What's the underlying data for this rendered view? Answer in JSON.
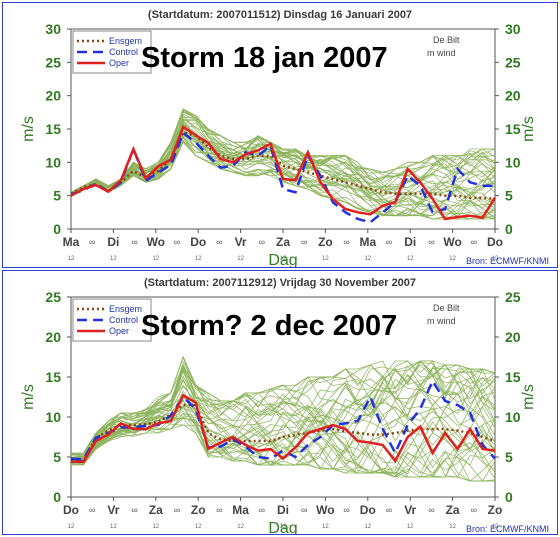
{
  "colors": {
    "ensemble": "#8cb35a",
    "ensgem": "#8b4513",
    "control": "#2233dd",
    "oper": "#e02020",
    "axis_text": "#2f7a1f",
    "header": "#3a3a3a",
    "frame": "#2f3fd0",
    "source": "#2233aa"
  },
  "chart_data": [
    {
      "type": "line",
      "header": "(Startdatum: 2007011512)   Dinsdag   16 Januari   2007",
      "overlay_title": "Storm 18 jan 2007",
      "station": "De Bilt",
      "variable": "m wind",
      "ylabel_left": "m/s",
      "ylabel_right": "m/s",
      "xlabel": "Dag",
      "ylim": [
        0,
        30
      ],
      "yticks": [
        0,
        5,
        10,
        15,
        20,
        25,
        30
      ],
      "day_labels": [
        "Ma",
        "Di",
        "Wo",
        "Do",
        "Vr",
        "Za",
        "Zo",
        "Ma",
        "Di",
        "Wo",
        "Do"
      ],
      "day_sublabels": [
        "12",
        "12",
        "12",
        "12",
        "12",
        "12",
        "12",
        "12",
        "12",
        "12",
        "12"
      ],
      "legend": [
        "Ensgem",
        "Control",
        "Oper"
      ],
      "source": "Bron: ECMWF/KNMI",
      "grid": false,
      "ensemble_spread": [
        [
          5.5,
          5.5
        ],
        [
          6.5,
          6
        ],
        [
          7.5,
          7
        ],
        [
          6.5,
          5.5
        ],
        [
          7.5,
          6.5
        ],
        [
          10,
          8
        ],
        [
          9,
          7
        ],
        [
          10,
          7.5
        ],
        [
          13,
          9
        ],
        [
          18,
          13
        ],
        [
          17,
          11
        ],
        [
          15,
          10
        ],
        [
          14,
          9
        ],
        [
          13,
          8.5
        ],
        [
          13,
          8
        ],
        [
          14,
          8
        ],
        [
          13,
          8
        ],
        [
          12,
          7
        ],
        [
          12,
          6.5
        ],
        [
          11,
          6
        ],
        [
          11,
          5
        ],
        [
          11,
          4.5
        ],
        [
          11,
          4
        ],
        [
          10,
          3
        ],
        [
          9,
          2.5
        ],
        [
          8.5,
          2
        ],
        [
          9,
          2
        ],
        [
          10,
          2
        ],
        [
          10,
          2
        ],
        [
          11,
          1.5
        ],
        [
          11,
          1.5
        ],
        [
          11,
          1.5
        ],
        [
          12,
          1.5
        ],
        [
          12,
          1.5
        ],
        [
          12,
          1.5
        ]
      ],
      "series": [
        {
          "name": "Ensgem",
          "values": [
            5.3,
            6.3,
            6.7,
            5.7,
            7.0,
            8.7,
            7.7,
            8.7,
            10.5,
            14.5,
            14.0,
            12.3,
            11.0,
            10.5,
            10.5,
            11.0,
            11.0,
            9.5,
            9.0,
            8.5,
            8.0,
            7.5,
            7.0,
            6.5,
            6.0,
            5.5,
            5.3,
            5.3,
            5.3,
            5.3,
            5.0,
            5.0,
            4.7,
            4.7,
            4.5
          ]
        },
        {
          "name": "Control",
          "values": [
            5.2,
            5.8,
            6.8,
            5.6,
            7.0,
            12.0,
            7.2,
            8.5,
            9.6,
            14.4,
            13.0,
            11.0,
            9.2,
            9.5,
            11.5,
            11.0,
            12.5,
            6.0,
            5.5,
            11.0,
            8.0,
            4.0,
            2.5,
            1.5,
            1.0,
            2.5,
            4.0,
            8.0,
            6.5,
            2.5,
            3.0,
            9.0,
            7.0,
            6.5,
            6.5
          ]
        },
        {
          "name": "Oper",
          "values": [
            5.0,
            6.0,
            6.6,
            5.6,
            7.3,
            12.0,
            7.6,
            9.4,
            10.4,
            15.3,
            14.1,
            12.9,
            10.5,
            10.0,
            11.2,
            11.8,
            12.8,
            7.5,
            7.3,
            11.5,
            7.0,
            4.5,
            3.0,
            2.5,
            2.2,
            3.5,
            4.0,
            9.0,
            7.0,
            4.5,
            1.5,
            1.8,
            2.0,
            1.7,
            4.7
          ]
        }
      ]
    },
    {
      "type": "line",
      "header": "(Startdatum: 2007112912)   Vrijdag   30 November   2007",
      "overlay_title": "Storm? 2 dec 2007",
      "station": "De Bilt",
      "variable": "m wind",
      "ylabel_left": "m/s",
      "ylabel_right": "m/s",
      "xlabel": "Dag",
      "ylim": [
        0,
        25
      ],
      "yticks": [
        0,
        5,
        10,
        15,
        20,
        25
      ],
      "day_labels": [
        "Do",
        "Vr",
        "Za",
        "Zo",
        "Ma",
        "Di",
        "Wo",
        "Do",
        "Vr",
        "Za",
        "Zo"
      ],
      "day_sublabels": [
        "12",
        "12",
        "12",
        "12",
        "12",
        "12",
        "12",
        "12",
        "12",
        "12",
        "12"
      ],
      "legend": [
        "Ensgem",
        "Control",
        "Oper"
      ],
      "source": "Bron: ECMWF/KNMI",
      "grid": false,
      "ensemble_spread": [
        [
          5.5,
          4
        ],
        [
          5.5,
          4
        ],
        [
          8,
          6
        ],
        [
          9.5,
          7
        ],
        [
          10.5,
          7.5
        ],
        [
          10.5,
          7.5
        ],
        [
          11,
          8
        ],
        [
          12.5,
          8
        ],
        [
          13,
          8.5
        ],
        [
          17.5,
          9
        ],
        [
          14,
          8
        ],
        [
          13,
          5
        ],
        [
          12,
          5
        ],
        [
          12,
          4.5
        ],
        [
          13,
          4.5
        ],
        [
          13,
          4
        ],
        [
          13.5,
          4
        ],
        [
          14,
          4
        ],
        [
          14,
          4
        ],
        [
          15,
          4
        ],
        [
          15,
          3.5
        ],
        [
          15,
          3.5
        ],
        [
          16,
          3
        ],
        [
          16,
          3
        ],
        [
          16.5,
          3
        ],
        [
          17,
          3
        ],
        [
          17,
          2.5
        ],
        [
          17,
          2.5
        ],
        [
          17,
          2.5
        ],
        [
          17,
          2.5
        ],
        [
          16.5,
          2.5
        ],
        [
          16.5,
          2.5
        ],
        [
          16,
          2
        ],
        [
          16,
          2
        ],
        [
          15.5,
          2
        ]
      ],
      "series": [
        {
          "name": "Ensgem",
          "values": [
            4.6,
            4.5,
            7.4,
            8.3,
            9.0,
            9.0,
            9.1,
            9.4,
            10.3,
            11.5,
            11.5,
            8.0,
            7.2,
            7.0,
            7.0,
            7.0,
            7.0,
            7.5,
            7.8,
            8.0,
            8.3,
            8.5,
            8.2,
            8.0,
            7.8,
            7.8,
            8.0,
            8.3,
            8.5,
            8.5,
            8.5,
            8.3,
            8.0,
            7.5,
            7.0
          ]
        },
        {
          "name": "Control",
          "values": [
            4.8,
            4.7,
            7.4,
            8.0,
            8.7,
            8.7,
            8.9,
            9.0,
            10.2,
            12.5,
            11.0,
            6.2,
            6.3,
            7.2,
            6.3,
            5.0,
            4.8,
            5.8,
            5.0,
            6.5,
            7.5,
            9.0,
            9.2,
            9.5,
            12.5,
            8.5,
            5.5,
            9.0,
            11.0,
            14.5,
            12.0,
            11.5,
            10.5,
            6.5,
            4.8
          ]
        },
        {
          "name": "Oper",
          "values": [
            4.4,
            4.4,
            7.0,
            7.8,
            9.2,
            8.5,
            8.5,
            9.2,
            9.5,
            12.7,
            11.8,
            6.0,
            6.8,
            7.5,
            6.5,
            5.8,
            6.0,
            4.8,
            6.2,
            8.0,
            8.5,
            9.0,
            8.5,
            7.0,
            6.8,
            6.5,
            4.5,
            7.5,
            8.8,
            5.5,
            8.0,
            6.0,
            8.5,
            6.0,
            5.8
          ]
        }
      ]
    }
  ]
}
